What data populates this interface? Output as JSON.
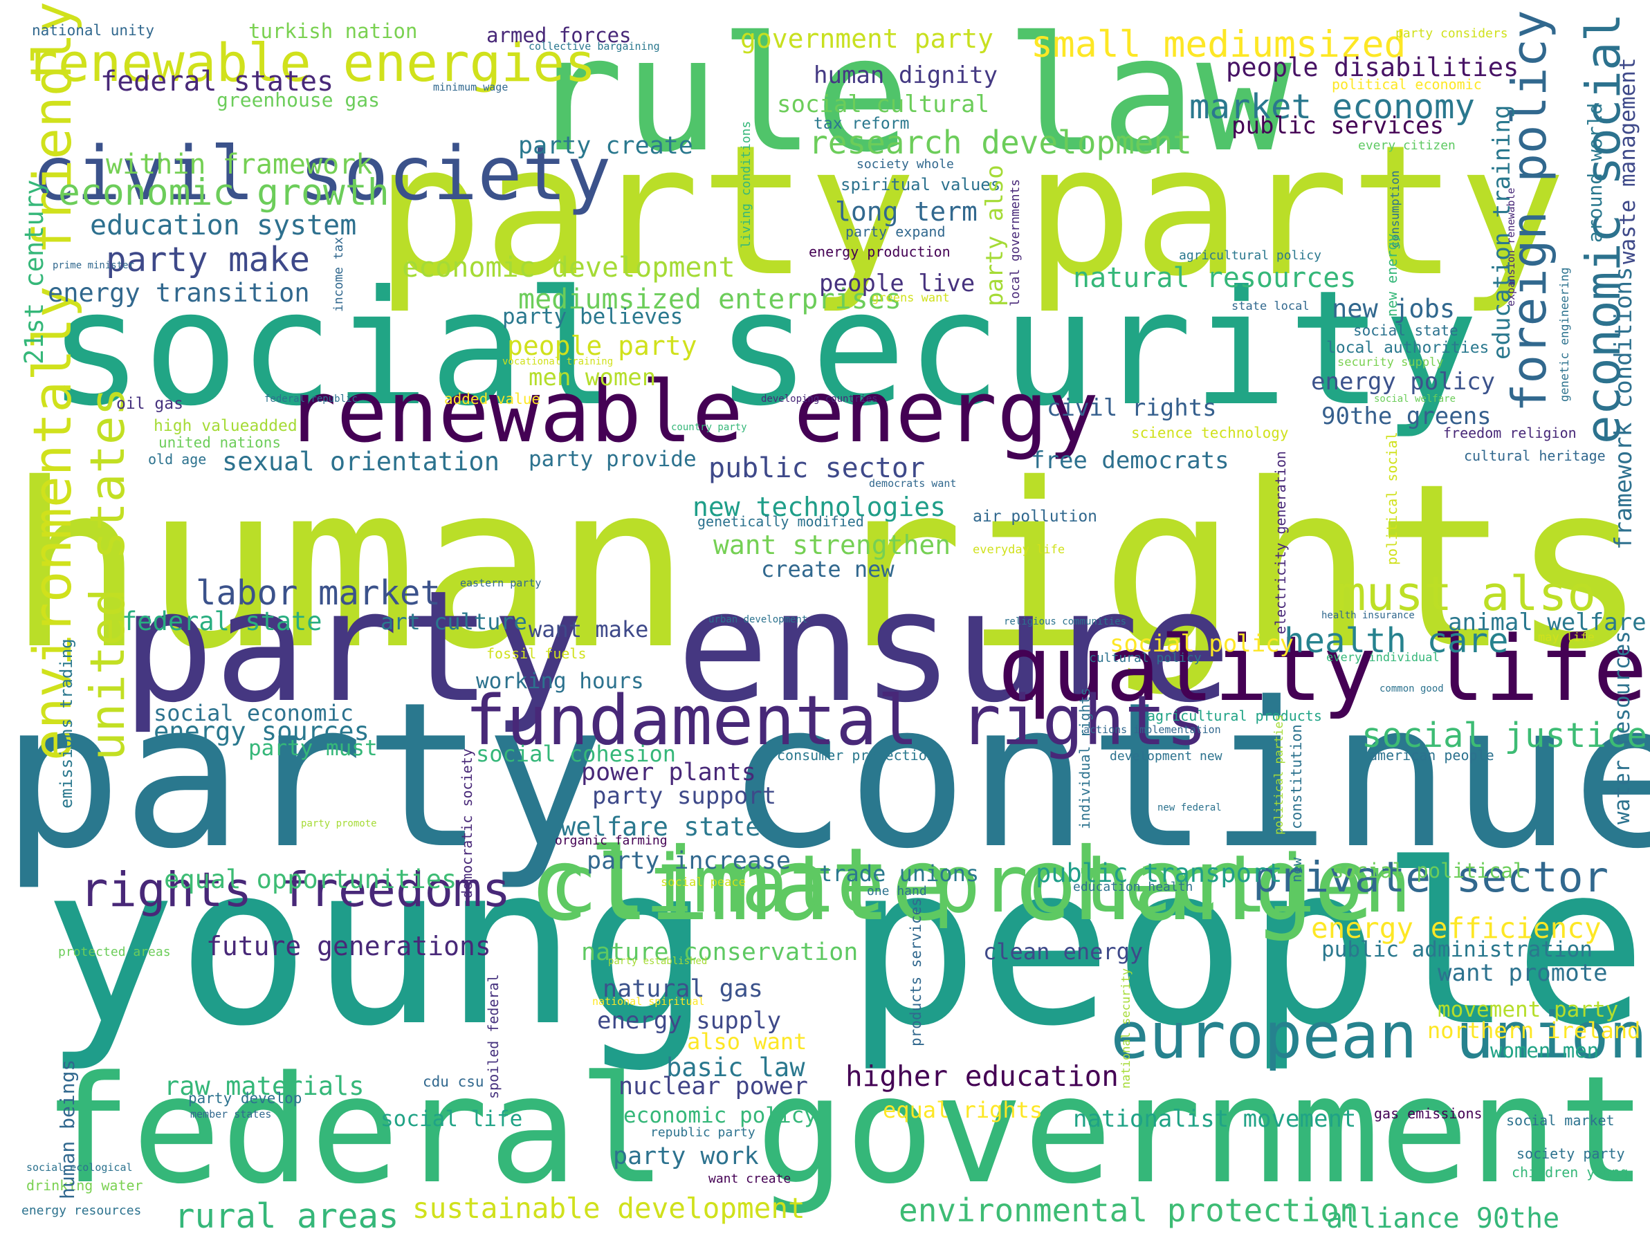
{
  "wordcloud": {
    "palette": [
      "#440154",
      "#482677",
      "#3f4a8a",
      "#31678e",
      "#26838f",
      "#1f9d8a",
      "#27ad81",
      "#42be71",
      "#6ccd5a",
      "#a0da39",
      "#bade28",
      "#d0e11c",
      "#fde725"
    ],
    "words": [
      {
        "text": "human rights",
        "color": "#bade28"
      },
      {
        "text": "young people",
        "color": "#1f9d8a"
      },
      {
        "text": "party continue",
        "color": "#2a788e"
      },
      {
        "text": "social security",
        "color": "#21a585"
      },
      {
        "text": "party party",
        "color": "#bade28"
      },
      {
        "text": "rule law",
        "color": "#50c46a"
      },
      {
        "text": "federal government",
        "color": "#35b779"
      },
      {
        "text": "party ensure",
        "color": "#453781"
      },
      {
        "text": "climate change",
        "color": "#5ec962"
      },
      {
        "text": "climate protection",
        "color": "#5ec962"
      },
      {
        "text": "renewable energy",
        "color": "#440154"
      },
      {
        "text": "civil society",
        "color": "#3b528b"
      },
      {
        "text": "quality life",
        "color": "#440154"
      },
      {
        "text": "fundamental rights",
        "color": "#482878"
      },
      {
        "text": "european union",
        "color": "#26828e"
      },
      {
        "text": "renewable energies",
        "color": "#d0e11c"
      },
      {
        "text": "environmentally friendly",
        "color": "#d0e11c"
      },
      {
        "text": "united states",
        "color": "#c2df23"
      },
      {
        "text": "foreign policy",
        "color": "#31688e"
      },
      {
        "text": "economic social",
        "color": "#2c728e"
      },
      {
        "text": "rights freedoms",
        "color": "#482878"
      },
      {
        "text": "private sector",
        "color": "#31688e"
      },
      {
        "text": "must also",
        "color": "#bddf26"
      },
      {
        "text": "small mediumsized",
        "color": "#fde725"
      },
      {
        "text": "economic growth",
        "color": "#6ccd5a"
      },
      {
        "text": "market economy",
        "color": "#2a788e"
      },
      {
        "text": "research development",
        "color": "#6ccd5a"
      },
      {
        "text": "party make",
        "color": "#3e4989"
      },
      {
        "text": "labor market",
        "color": "#3b528b"
      },
      {
        "text": "health care",
        "color": "#26828e"
      },
      {
        "text": "social justice",
        "color": "#3dbc74"
      },
      {
        "text": "rural areas",
        "color": "#35b779"
      },
      {
        "text": "environmental protection",
        "color": "#3dbc74"
      },
      {
        "text": "sustainable development",
        "color": "#d0e11c"
      },
      {
        "text": "higher education",
        "color": "#440154"
      },
      {
        "text": "energy efficiency",
        "color": "#fde725"
      },
      {
        "text": "alliance 90the",
        "color": "#35b779"
      },
      {
        "text": "education system",
        "color": "#2d708e"
      },
      {
        "text": "energy transition",
        "color": "#31688e"
      },
      {
        "text": "economic development",
        "color": "#a5db36"
      },
      {
        "text": "mediumsized enterprises",
        "color": "#6ccd5a"
      },
      {
        "text": "within framework",
        "color": "#75d054"
      },
      {
        "text": "federal states",
        "color": "#482878"
      },
      {
        "text": "government party",
        "color": "#c8e020"
      },
      {
        "text": "natural resources",
        "color": "#35b779"
      },
      {
        "text": "public sector",
        "color": "#3e4989"
      },
      {
        "text": "new technologies",
        "color": "#1f9e89"
      },
      {
        "text": "want strengthen",
        "color": "#75d054"
      },
      {
        "text": "people disabilities",
        "color": "#471365"
      },
      {
        "text": "public services",
        "color": "#440154"
      },
      {
        "text": "human dignity",
        "color": "#443983"
      },
      {
        "text": "social cultural",
        "color": "#6ccd5a"
      },
      {
        "text": "party create",
        "color": "#2a788e"
      },
      {
        "text": "long term",
        "color": "#31688e"
      },
      {
        "text": "people live",
        "color": "#46327e"
      },
      {
        "text": "new jobs",
        "color": "#31688e"
      },
      {
        "text": "energy policy",
        "color": "#3b528b"
      },
      {
        "text": "civil rights",
        "color": "#355f8d"
      },
      {
        "text": "90the greens",
        "color": "#355f8d"
      },
      {
        "text": "free democrats",
        "color": "#2d708e"
      },
      {
        "text": "sexual orientation",
        "color": "#2c728e"
      },
      {
        "text": "party provide",
        "color": "#2c728e"
      },
      {
        "text": "people party",
        "color": "#d0e11c"
      },
      {
        "text": "men women",
        "color": "#b5de2b"
      },
      {
        "text": "party believes",
        "color": "#2a788e"
      },
      {
        "text": "create new",
        "color": "#31688e"
      },
      {
        "text": "federal state",
        "color": "#28ae80"
      },
      {
        "text": "art culture",
        "color": "#2a788e"
      },
      {
        "text": "want make",
        "color": "#3e4989"
      },
      {
        "text": "animal welfare",
        "color": "#2a788e"
      },
      {
        "text": "social policy",
        "color": "#fde725"
      },
      {
        "text": "working hours",
        "color": "#2c728e"
      },
      {
        "text": "social economic",
        "color": "#2c728e"
      },
      {
        "text": "energy sources",
        "color": "#2a788e"
      },
      {
        "text": "party must",
        "color": "#35b779"
      },
      {
        "text": "social cohesion",
        "color": "#35b779"
      },
      {
        "text": "power plants",
        "color": "#482878"
      },
      {
        "text": "party support",
        "color": "#3e4989"
      },
      {
        "text": "welfare state",
        "color": "#2a788e"
      },
      {
        "text": "party increase",
        "color": "#31688e"
      },
      {
        "text": "equal opportunities",
        "color": "#3dbc74"
      },
      {
        "text": "trade unions",
        "color": "#2a788e"
      },
      {
        "text": "public transport",
        "color": "#1f9e89"
      },
      {
        "text": "social political",
        "color": "#6ccd5a"
      },
      {
        "text": "future generations",
        "color": "#482878"
      },
      {
        "text": "nature conservation",
        "color": "#5ec962"
      },
      {
        "text": "clean energy",
        "color": "#3e4989"
      },
      {
        "text": "public administration",
        "color": "#2a788e"
      },
      {
        "text": "want promote",
        "color": "#2c728e"
      },
      {
        "text": "natural gas",
        "color": "#3b528b"
      },
      {
        "text": "energy supply",
        "color": "#3e4989"
      },
      {
        "text": "also want",
        "color": "#fde725"
      },
      {
        "text": "basic law",
        "color": "#2a788e"
      },
      {
        "text": "nuclear power",
        "color": "#414487"
      },
      {
        "text": "raw materials",
        "color": "#35b779"
      },
      {
        "text": "movement party",
        "color": "#b5de2b"
      },
      {
        "text": "northern ireland",
        "color": "#fde725"
      },
      {
        "text": "women men",
        "color": "#20a386"
      },
      {
        "text": "equal rights",
        "color": "#fde725"
      },
      {
        "text": "nationalist movement",
        "color": "#20a386"
      },
      {
        "text": "social life",
        "color": "#20a386"
      },
      {
        "text": "economic policy",
        "color": "#35b779"
      },
      {
        "text": "party work",
        "color": "#2c728e"
      },
      {
        "text": "greenhouse gas",
        "color": "#6ccd5a"
      },
      {
        "text": "turkish nation",
        "color": "#7ad151"
      },
      {
        "text": "armed forces",
        "color": "#482878"
      },
      {
        "text": "21st century",
        "color": "#35b779"
      },
      {
        "text": "national unity",
        "color": "#31688e"
      },
      {
        "text": "collective bargaining",
        "color": "#2a788e"
      },
      {
        "text": "minimum wage",
        "color": "#31688e"
      },
      {
        "text": "party considers",
        "color": "#d0e11c"
      },
      {
        "text": "political economic",
        "color": "#fde725"
      },
      {
        "text": "every citizen",
        "color": "#5ec962"
      },
      {
        "text": "tax reform",
        "color": "#2a788e"
      },
      {
        "text": "society whole",
        "color": "#31688e"
      },
      {
        "text": "spiritual values",
        "color": "#2c728e"
      },
      {
        "text": "party expand",
        "color": "#31688e"
      },
      {
        "text": "energy production",
        "color": "#440154"
      },
      {
        "text": "greens want",
        "color": "#d0e11c"
      },
      {
        "text": "agricultural policy",
        "color": "#2a788e"
      },
      {
        "text": "state local",
        "color": "#31688e"
      },
      {
        "text": "social state",
        "color": "#2c728e"
      },
      {
        "text": "security supply",
        "color": "#7ad151"
      },
      {
        "text": "local authorities",
        "color": "#2a788e"
      },
      {
        "text": "prime minister",
        "color": "#31688e"
      },
      {
        "text": "oil gas",
        "color": "#46327e"
      },
      {
        "text": "federal republic",
        "color": "#2c728e"
      },
      {
        "text": "high valueadded",
        "color": "#a5db36"
      },
      {
        "text": "united nations",
        "color": "#6ccd5a"
      },
      {
        "text": "old age",
        "color": "#2c728e"
      },
      {
        "text": "added value",
        "color": "#fde725"
      },
      {
        "text": "developing countries",
        "color": "#482878"
      },
      {
        "text": "country party",
        "color": "#35b779"
      },
      {
        "text": "science technology",
        "color": "#d0e11c"
      },
      {
        "text": "freedom religion",
        "color": "#482878"
      },
      {
        "text": "cultural heritage",
        "color": "#31688e"
      },
      {
        "text": "democrats want",
        "color": "#31688e"
      },
      {
        "text": "genetically modified",
        "color": "#2c728e"
      },
      {
        "text": "air pollution",
        "color": "#31688e"
      },
      {
        "text": "everyday life",
        "color": "#d0e11c"
      },
      {
        "text": "vocational training",
        "color": "#d0e11c"
      },
      {
        "text": "social welfare",
        "color": "#6ccd5a"
      },
      {
        "text": "eastern party",
        "color": "#31688e"
      },
      {
        "text": "urban development",
        "color": "#2c728e"
      },
      {
        "text": "religious communities",
        "color": "#2c728e"
      },
      {
        "text": "health insurance",
        "color": "#31688e"
      },
      {
        "text": "may life",
        "color": "#d0e11c"
      },
      {
        "text": "fossil fuels",
        "color": "#d0e11c"
      },
      {
        "text": "cultural policy",
        "color": "#2c728e"
      },
      {
        "text": "every individual",
        "color": "#35b779"
      },
      {
        "text": "common good",
        "color": "#2c728e"
      },
      {
        "text": "agricultural products",
        "color": "#20a386"
      },
      {
        "text": "actions implementation",
        "color": "#31688e"
      },
      {
        "text": "consumer protection",
        "color": "#2a788e"
      },
      {
        "text": "development new",
        "color": "#2c728e"
      },
      {
        "text": "american people",
        "color": "#2c728e"
      },
      {
        "text": "party promote",
        "color": "#a5db36"
      },
      {
        "text": "new federal",
        "color": "#2c728e"
      },
      {
        "text": "organic farming",
        "color": "#440154"
      },
      {
        "text": "social peace",
        "color": "#d0e11c"
      },
      {
        "text": "one hand",
        "color": "#2c728e"
      },
      {
        "text": "education health",
        "color": "#2c728e"
      },
      {
        "text": "protected areas",
        "color": "#6ccd5a"
      },
      {
        "text": "party established",
        "color": "#a5db36"
      },
      {
        "text": "national spiritual",
        "color": "#fde725"
      },
      {
        "text": "party develop",
        "color": "#2c728e"
      },
      {
        "text": "member states",
        "color": "#31688e"
      },
      {
        "text": "cdu csu",
        "color": "#31688e"
      },
      {
        "text": "republic party",
        "color": "#2c728e"
      },
      {
        "text": "want create",
        "color": "#440154"
      },
      {
        "text": "gas emissions",
        "color": "#440154"
      },
      {
        "text": "social market",
        "color": "#2c728e"
      },
      {
        "text": "society party",
        "color": "#2c728e"
      },
      {
        "text": "children young",
        "color": "#35b779"
      },
      {
        "text": "social ecological",
        "color": "#2c728e"
      },
      {
        "text": "drinking water",
        "color": "#7ad151"
      },
      {
        "text": "energy resources",
        "color": "#2c728e"
      },
      {
        "text": "human beings",
        "color": "#31688e"
      },
      {
        "text": "emissions trading",
        "color": "#2a788e"
      },
      {
        "text": "living conditions",
        "color": "#35b779"
      },
      {
        "text": "income tax",
        "color": "#31688e"
      },
      {
        "text": "local governments",
        "color": "#482878"
      },
      {
        "text": "consumption",
        "color": "#2c728e"
      },
      {
        "text": "genetic engineering",
        "color": "#2c728e"
      },
      {
        "text": "expansion renewable",
        "color": "#482878"
      },
      {
        "text": "education training",
        "color": "#2a788e"
      },
      {
        "text": "around world",
        "color": "#2a788e"
      },
      {
        "text": "waste management",
        "color": "#3e4989"
      },
      {
        "text": "framework conditions",
        "color": "#2d708e"
      },
      {
        "text": "water resources",
        "color": "#2c728e"
      },
      {
        "text": "party also",
        "color": "#a5db36"
      },
      {
        "text": "new energy",
        "color": "#35b779"
      },
      {
        "text": "political social",
        "color": "#d0e11c"
      },
      {
        "text": "electricity generation",
        "color": "#482878"
      },
      {
        "text": "political parties",
        "color": "#a5db36"
      },
      {
        "text": "constitution",
        "color": "#2c728e"
      },
      {
        "text": "individual rights",
        "color": "#2c728e"
      },
      {
        "text": "new",
        "color": "#2a788e"
      },
      {
        "text": "democratic society",
        "color": "#482878"
      },
      {
        "text": "spoiled federal",
        "color": "#46327e"
      },
      {
        "text": "products services",
        "color": "#31688e"
      },
      {
        "text": "national security",
        "color": "#a5db36"
      }
    ]
  }
}
